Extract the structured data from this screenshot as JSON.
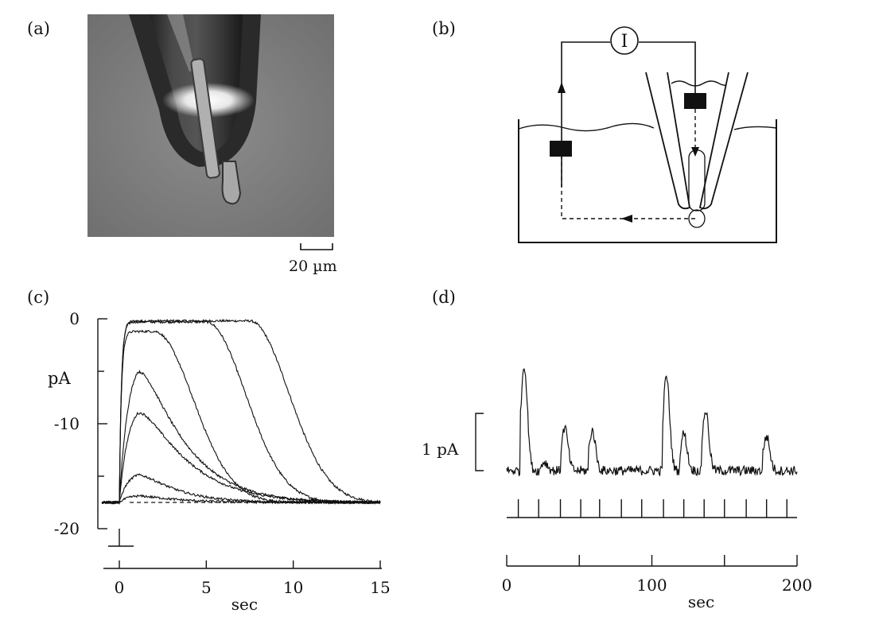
{
  "panels": {
    "a": {
      "label": "(a)",
      "scale_bar_label": "20 µm"
    },
    "b": {
      "label": "(b)",
      "current_symbol": "I"
    },
    "c": {
      "label": "(c)",
      "y_unit": "pA",
      "x_unit": "sec",
      "y_ticks": [
        "0",
        "-10",
        "-20"
      ],
      "x_ticks": [
        "0",
        "5",
        "10",
        "15"
      ]
    },
    "d": {
      "label": "(d)",
      "scale_label": "1 pA",
      "x_unit": "sec",
      "x_ticks": [
        "0",
        "100",
        "200"
      ]
    }
  },
  "chart_data": [
    {
      "type": "line",
      "panel": "c",
      "xlabel": "sec",
      "ylabel": "pA",
      "xlim": [
        -1,
        15
      ],
      "ylim": [
        -20,
        0
      ],
      "baseline": -17.5,
      "stimulus_time": 0,
      "series": [
        {
          "peak": -0.2,
          "plateau_end": 7.5,
          "decay_tau": 3.0
        },
        {
          "peak": -0.3,
          "plateau_end": 5.0,
          "decay_tau": 3.0
        },
        {
          "peak": -1.2,
          "plateau_end": 2.0,
          "decay_tau": 3.0
        },
        {
          "peak": -3.3,
          "plateau_end": 1.0,
          "decay_tau": 3.0
        },
        {
          "peak": -7.8,
          "plateau_end": 1.0,
          "decay_tau": 3.2
        },
        {
          "peak": -14.5,
          "plateau_end": 1.0,
          "decay_tau": 2.5
        },
        {
          "peak": -16.8,
          "plateau_end": 1.0,
          "decay_tau": 2.5
        }
      ]
    },
    {
      "type": "line",
      "panel": "d",
      "xlabel": "sec",
      "xlim": [
        0,
        200
      ],
      "baseline": 0,
      "scale_bar_pA": 1,
      "stimulus_times": [
        8,
        22,
        37,
        51,
        64,
        79,
        93,
        108,
        122,
        136,
        150,
        165,
        179,
        193
      ],
      "peaks": [
        {
          "t": 12,
          "amp": 1.85
        },
        {
          "t": 26,
          "amp": 0.15
        },
        {
          "t": 40,
          "amp": 0.75
        },
        {
          "t": 59,
          "amp": 0.7
        },
        {
          "t": 110,
          "amp": 1.65
        },
        {
          "t": 122,
          "amp": 0.65
        },
        {
          "t": 137,
          "amp": 1.05
        },
        {
          "t": 179,
          "amp": 0.6
        }
      ]
    }
  ]
}
